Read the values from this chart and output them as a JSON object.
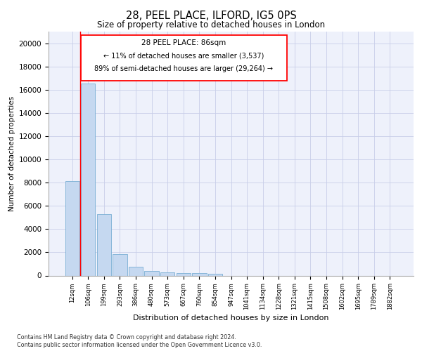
{
  "title_line1": "28, PEEL PLACE, ILFORD, IG5 0PS",
  "title_line2": "Size of property relative to detached houses in London",
  "xlabel": "Distribution of detached houses by size in London",
  "ylabel": "Number of detached properties",
  "categories": [
    "12sqm",
    "106sqm",
    "199sqm",
    "293sqm",
    "386sqm",
    "480sqm",
    "573sqm",
    "667sqm",
    "760sqm",
    "854sqm",
    "947sqm",
    "1041sqm",
    "1134sqm",
    "1228sqm",
    "1321sqm",
    "1415sqm",
    "1508sqm",
    "1602sqm",
    "1695sqm",
    "1789sqm",
    "1882sqm"
  ],
  "values": [
    8100,
    16500,
    5300,
    1850,
    750,
    370,
    290,
    220,
    190,
    160,
    0,
    0,
    0,
    0,
    0,
    0,
    0,
    0,
    0,
    0,
    0
  ],
  "bar_color": "#c5d8f0",
  "bar_edge_color": "#7aafd4",
  "annotation_title": "28 PEEL PLACE: 86sqm",
  "annotation_text1": "← 11% of detached houses are smaller (3,537)",
  "annotation_text2": "89% of semi-detached houses are larger (29,264) →",
  "vline_x": 0.5,
  "ylim": [
    0,
    21000
  ],
  "yticks": [
    0,
    2000,
    4000,
    6000,
    8000,
    10000,
    12000,
    14000,
    16000,
    18000,
    20000
  ],
  "footer1": "Contains HM Land Registry data © Crown copyright and database right 2024.",
  "footer2": "Contains public sector information licensed under the Open Government Licence v3.0.",
  "bg_color": "#eef1fb",
  "grid_color": "#c8cee8"
}
